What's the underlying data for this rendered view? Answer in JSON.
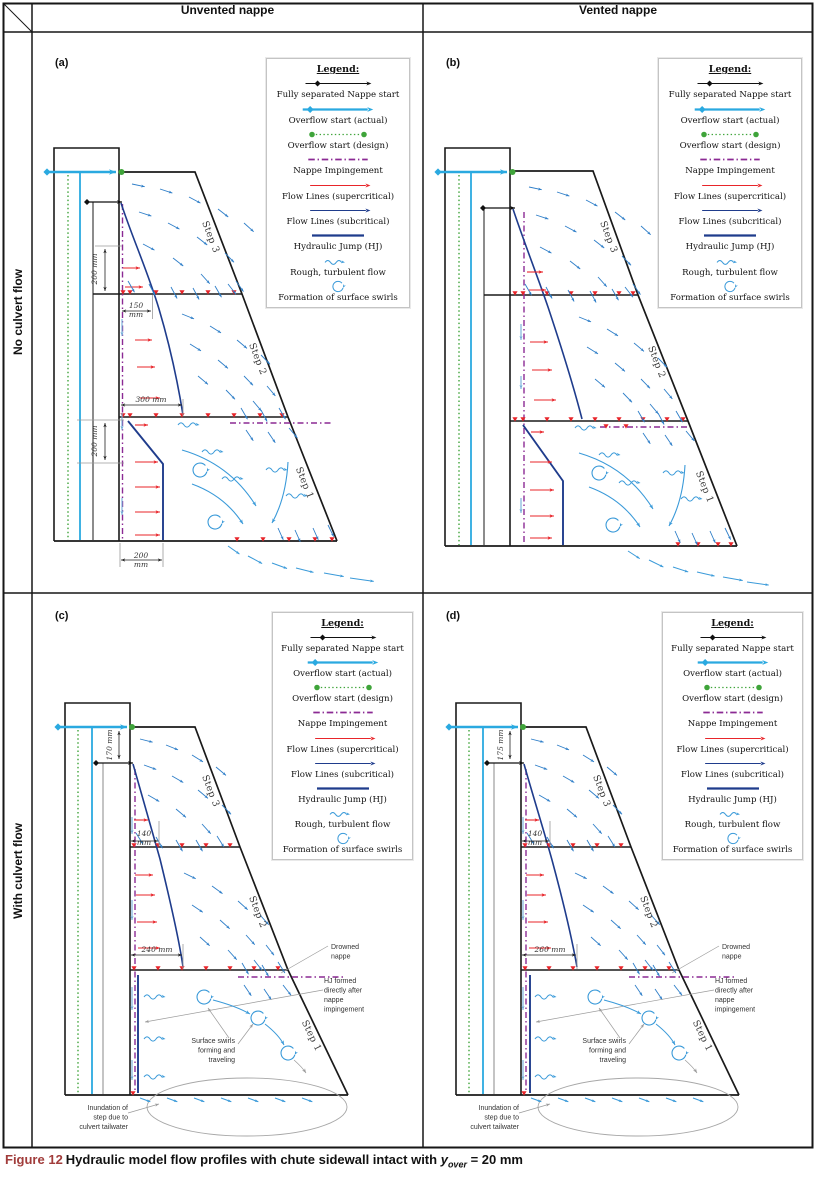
{
  "table": {
    "col_headers": [
      "Unvented nappe",
      "Vented nappe"
    ],
    "row_headers": [
      "No culvert flow",
      "With culvert flow"
    ]
  },
  "legend": {
    "title": "Legend:",
    "items": [
      {
        "key": "fully-separated-nappe-start",
        "label": "Fully separated Nappe start"
      },
      {
        "key": "overflow-start-actual",
        "label": "Overflow start (actual)"
      },
      {
        "key": "overflow-start-design",
        "label": "Overflow start (design)"
      },
      {
        "key": "nappe-impingement",
        "label": "Nappe Impingement"
      },
      {
        "key": "flow-lines-supercritical",
        "label": "Flow Lines (supercritical)"
      },
      {
        "key": "flow-lines-subcritical",
        "label": "Flow Lines (subcritical)"
      },
      {
        "key": "hydraulic-jump",
        "label": "Hydraulic Jump (HJ)"
      },
      {
        "key": "rough-turbulent-flow",
        "label": "Rough, turbulent flow"
      },
      {
        "key": "formation-of-surface-swirls",
        "label": "Formation of surface swirls"
      }
    ]
  },
  "panels": {
    "a": {
      "label": "(a)",
      "steps": [
        "Step 1",
        "Step 2",
        "Step 3"
      ],
      "dims": {
        "upper_height": "200 mm",
        "offset": {
          "value": "150",
          "unit": "mm"
        },
        "impingement": "300 mm",
        "lower_height": "200 mm",
        "base": {
          "value": "200",
          "unit": "mm"
        }
      }
    },
    "b": {
      "label": "(b)",
      "steps": [
        "Step 1",
        "Step 2",
        "Step 3"
      ]
    },
    "c": {
      "label": "(c)",
      "steps": [
        "Step 1",
        "Step 2",
        "Step 3"
      ],
      "dims": {
        "crest_drop": "170 mm",
        "offset": {
          "value": "140",
          "unit": "mm"
        },
        "impingement": "240 mm"
      }
    },
    "d": {
      "label": "(d)",
      "steps": [
        "Step 1",
        "Step 2",
        "Step 3"
      ],
      "dims": {
        "crest_drop": "175 mm",
        "offset": {
          "value": "140",
          "unit": "mm"
        },
        "impingement": "260 mm"
      }
    }
  },
  "annotations": {
    "drowned_nappe": [
      "Drowned",
      "nappe"
    ],
    "hj_formed": [
      "HJ formed",
      "directly after",
      "nappe",
      "impingement"
    ],
    "surface_swirls": [
      "Surface swirls",
      "forming and",
      "traveling"
    ],
    "inundation": [
      "Inundation of",
      "step due to",
      "culvert tailwater"
    ]
  },
  "caption": {
    "figure_label": "Figure 12",
    "text": "Hydraulic model flow profiles with chute sidewall intact with",
    "variable": "y",
    "subscript": "over",
    "value": "= 20 mm"
  },
  "colors": {
    "accent_caption": "#a13c3b",
    "overflow_actual": "#2aa9e0",
    "overflow_design": "#3fa43a",
    "nappe_impingement": "#8b2a94",
    "supercritical": "#e8252a",
    "subcritical_dark": "#1f3c8c",
    "flow_blue": "#2e7ec8"
  }
}
